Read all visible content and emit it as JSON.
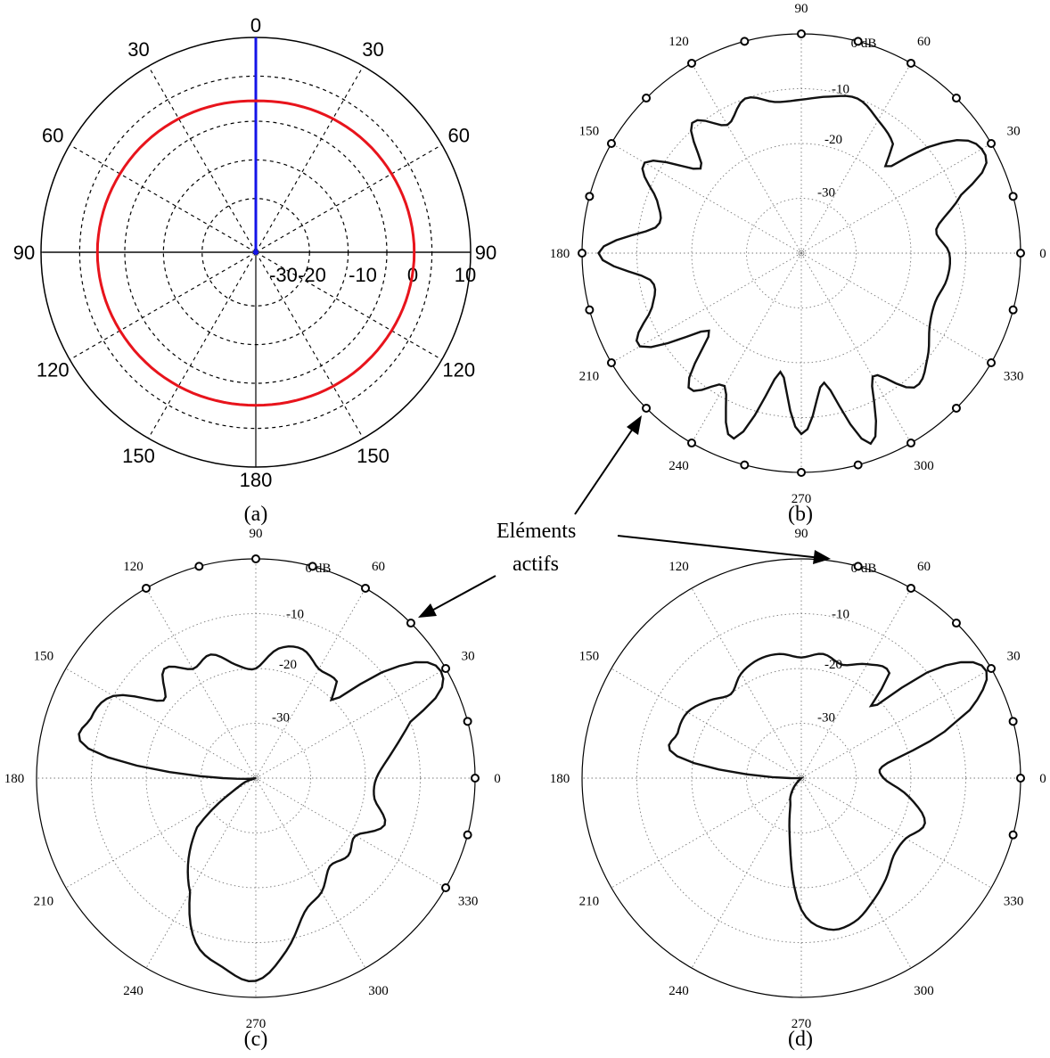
{
  "chart_data": [
    {
      "panel": "a",
      "type": "line",
      "caption": "(a)",
      "coordinates": "polar",
      "angle_labels": [
        "0",
        "30",
        "60",
        "90",
        "120",
        "150",
        "180",
        "150",
        "120",
        "90",
        "60",
        "30"
      ],
      "radial_labels": [
        "-30",
        "-20",
        "-10",
        "0",
        "10"
      ],
      "rlim": [
        -30,
        10
      ],
      "grid": true,
      "colors": {
        "pattern": "#e8141c",
        "steer": "#1414e8",
        "axes": "#000000"
      },
      "steer_angle": 0,
      "series": [
        {
          "angle_deg": [
            0,
            15,
            30,
            45,
            60,
            75,
            90,
            105,
            120,
            135,
            150,
            165,
            180,
            195,
            210,
            225,
            240,
            255,
            270,
            285,
            300,
            315,
            330,
            345
          ],
          "value_db": [
            -1.8,
            -1.6,
            -1.3,
            -1.0,
            -0.8,
            -0.6,
            -0.5,
            -0.6,
            -0.8,
            -1.0,
            -1.2,
            -1.4,
            -1.5,
            -1.4,
            -1.2,
            -1.0,
            -0.8,
            -0.6,
            -0.5,
            -0.6,
            -0.8,
            -1.0,
            -1.3,
            -1.6
          ]
        }
      ]
    },
    {
      "panel": "b",
      "type": "line",
      "caption": "(b)",
      "coordinates": "polar",
      "angle_labels": [
        "0",
        "30",
        "60",
        "90",
        "120",
        "150",
        "180",
        "210",
        "240",
        "270",
        "300",
        "330"
      ],
      "radial_labels": [
        "0 dB",
        "-10",
        "-20",
        "-30"
      ],
      "rlim": [
        -40,
        0
      ],
      "grid": true,
      "active_elements_deg": [
        0,
        15,
        30,
        45,
        60,
        75,
        90,
        105,
        120,
        135,
        150,
        165,
        180,
        195,
        210,
        225,
        240,
        255,
        270,
        285,
        300,
        315,
        330,
        345
      ],
      "series": [
        {
          "angle_deg": [
            0,
            10,
            20,
            25,
            30,
            35,
            40,
            45,
            50,
            60,
            70,
            80,
            90,
            100,
            110,
            120,
            130,
            140,
            150,
            160,
            170,
            180,
            190,
            200,
            210,
            220,
            230,
            240,
            250,
            260,
            270,
            280,
            290,
            300,
            310,
            320,
            330,
            340,
            350
          ],
          "value_db": [
            -13,
            -15,
            -9,
            -3,
            -2,
            -4,
            -10,
            -18,
            -14,
            -12,
            -10,
            -11,
            -12,
            -12,
            -10,
            -13,
            -9,
            -16,
            -7,
            -12,
            -13,
            -3,
            -12,
            -11,
            -6,
            -18,
            -8,
            -12,
            -4,
            -18,
            -7,
            -16,
            -3,
            -14,
            -8,
            -10,
            -13,
            -14,
            -13
          ]
        }
      ]
    },
    {
      "panel": "c",
      "type": "line",
      "caption": "(c)",
      "coordinates": "polar",
      "angle_labels": [
        "0",
        "30",
        "60",
        "90",
        "120",
        "150",
        "180",
        "210",
        "240",
        "270",
        "300",
        "330"
      ],
      "radial_labels": [
        "0 dB",
        "-10",
        "-20",
        "-30"
      ],
      "rlim": [
        -40,
        0
      ],
      "grid": true,
      "active_elements_deg": [
        0,
        15,
        30,
        45,
        60,
        75,
        90,
        105,
        120,
        330,
        345
      ],
      "series": [
        {
          "angle_deg": [
            0,
            10,
            20,
            25,
            30,
            35,
            40,
            45,
            50,
            60,
            70,
            80,
            90,
            100,
            110,
            120,
            130,
            140,
            150,
            160,
            170,
            180,
            190,
            200,
            210,
            220,
            240,
            250,
            260,
            270,
            280,
            290,
            300,
            310,
            320,
            330,
            340,
            350
          ],
          "value_db": [
            -18,
            -15,
            -10,
            -3,
            -1,
            -3,
            -10,
            -20,
            -17,
            -17,
            -15,
            -16,
            -20,
            -19,
            -16,
            -17,
            -14,
            -18,
            -10,
            -8,
            -9,
            -34,
            -40,
            -38,
            -35,
            -26,
            -16,
            -8,
            -5,
            -3,
            -8,
            -14,
            -16,
            -19,
            -18,
            -19,
            -15,
            -18
          ]
        }
      ]
    },
    {
      "panel": "d",
      "type": "line",
      "caption": "(d)",
      "coordinates": "polar",
      "angle_labels": [
        "0",
        "30",
        "60",
        "90",
        "120",
        "150",
        "180",
        "210",
        "240",
        "270",
        "300",
        "330"
      ],
      "radial_labels": [
        "0 dB",
        "-10",
        "-20",
        "-30"
      ],
      "rlim": [
        -40,
        0
      ],
      "grid": true,
      "active_elements_deg": [
        0,
        15,
        30,
        45,
        60,
        75,
        345
      ],
      "series": [
        {
          "angle_deg": [
            0,
            10,
            20,
            25,
            30,
            35,
            40,
            45,
            50,
            60,
            70,
            80,
            90,
            100,
            110,
            120,
            130,
            140,
            150,
            160,
            170,
            180,
            190,
            200,
            210,
            220,
            230,
            240,
            250,
            260,
            270,
            280,
            290,
            300,
            310,
            320,
            330,
            340,
            350
          ],
          "value_db": [
            -25,
            -24,
            -10,
            -4,
            -1,
            -3,
            -10,
            -22,
            -15,
            -16,
            -18,
            -17,
            -18,
            -17,
            -17,
            -18,
            -20,
            -18,
            -16,
            -16,
            -17,
            -38,
            -40,
            -40,
            -40,
            -40,
            -38,
            -36,
            -34,
            -28,
            -16,
            -12,
            -12,
            -14,
            -16,
            -18,
            -18,
            -16,
            -20
          ]
        }
      ]
    }
  ],
  "annotation": {
    "line1": "Eléments",
    "line2": "actifs"
  }
}
